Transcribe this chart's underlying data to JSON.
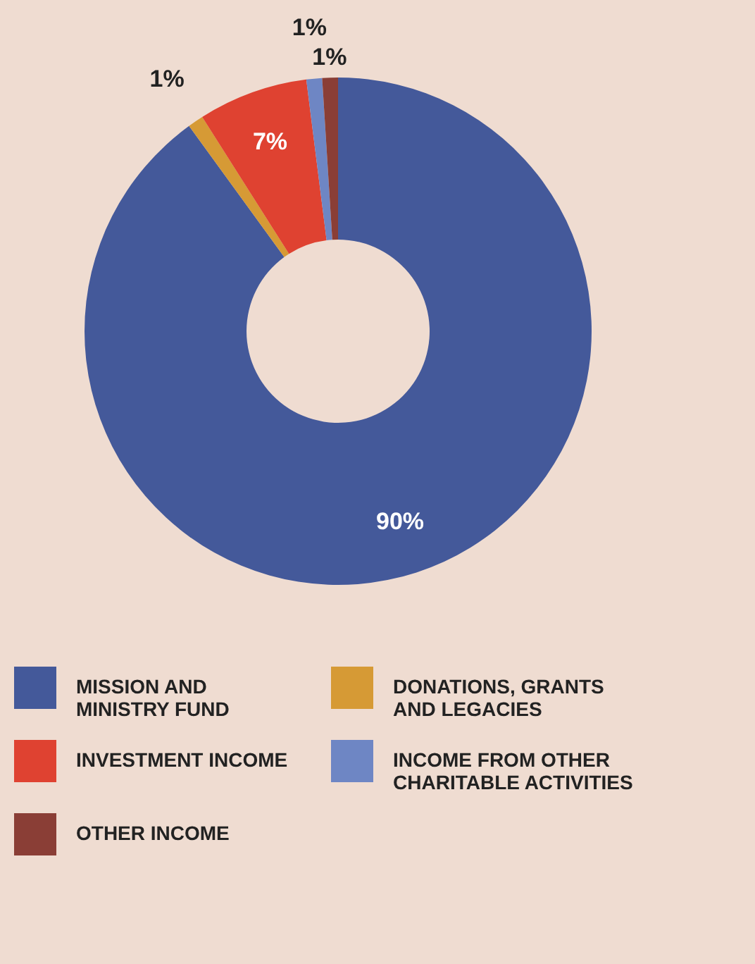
{
  "chart_data": {
    "type": "donut",
    "categories": [
      "MISSION AND MINISTRY FUND",
      "DONATIONS, GRANTS AND LEGACIES",
      "INVESTMENT INCOME",
      "INCOME FROM OTHER CHARITABLE ACTIVITIES",
      "OTHER INCOME"
    ],
    "values": [
      90,
      1,
      7,
      1,
      1
    ],
    "colors": [
      "#44599a",
      "#d69a35",
      "#df4231",
      "#6e86c4",
      "#8a3e36"
    ],
    "value_labels": [
      "90%",
      "1%",
      "7%",
      "1%",
      "1%"
    ],
    "legend": "bottom"
  }
}
